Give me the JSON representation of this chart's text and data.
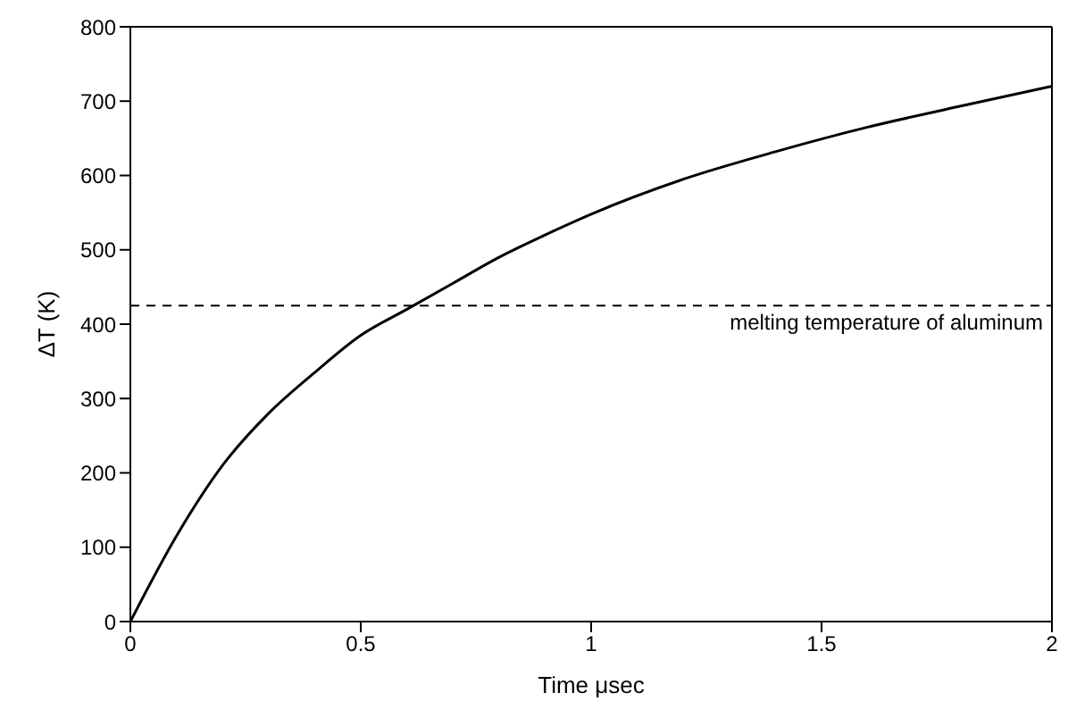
{
  "chart_data": {
    "type": "line",
    "xlabel": "Time μsec",
    "ylabel": "ΔT (K)",
    "x": [
      0,
      0.1,
      0.2,
      0.3,
      0.4,
      0.5,
      0.6,
      0.7,
      0.8,
      0.9,
      1.0,
      1.2,
      1.4,
      1.6,
      1.8,
      2.0
    ],
    "series": [
      {
        "color": "#000000",
        "values": [
          0,
          115,
          210,
          280,
          335,
          385,
          420,
          455,
          490,
          520,
          548,
          595,
          632,
          665,
          693,
          720
        ]
      }
    ],
    "xlim": [
      0,
      2
    ],
    "xticks": [
      0,
      0.5,
      1,
      1.5,
      2
    ],
    "ylim": [
      0,
      800
    ],
    "yticks": [
      0,
      100,
      200,
      300,
      400,
      500,
      600,
      700,
      800
    ],
    "ref_lines": [
      {
        "axis": "y",
        "value": 425,
        "label": "melting temperature of aluminum",
        "color": "#000000",
        "line_style": "dashed"
      }
    ],
    "grid": false,
    "legend": false,
    "marker": "none",
    "line_style": "solid"
  }
}
